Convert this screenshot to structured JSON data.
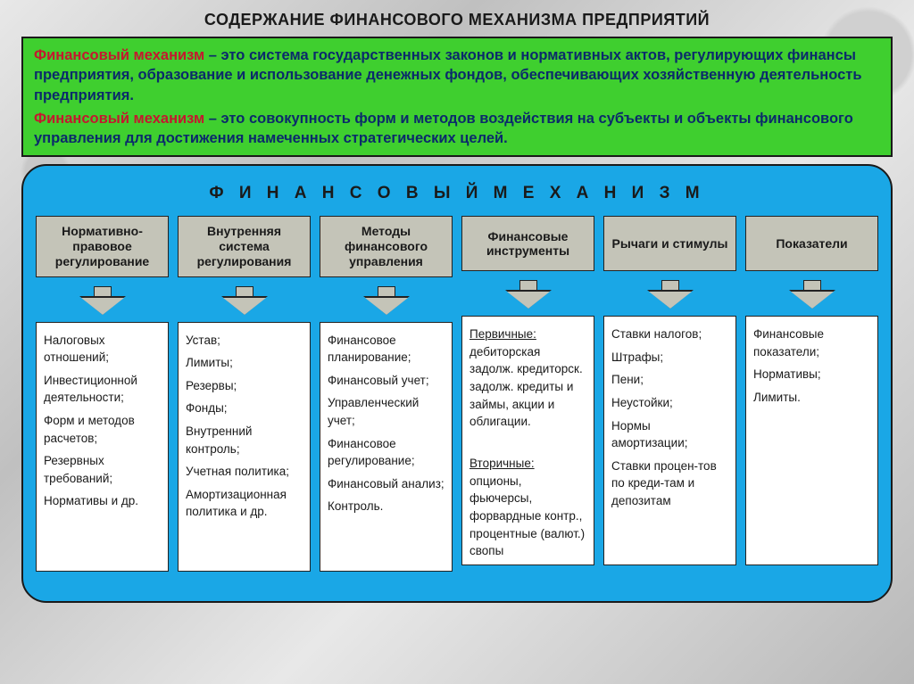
{
  "title": "СОДЕРЖАНИЕ ФИНАНСОВОГО МЕХАНИЗМА ПРЕДПРИЯТИЙ",
  "def_box": {
    "bg_color": "#3fcf2f",
    "term": "Финансовый механизм",
    "p1_rest": " – это система государственных законов и нормативных актов, регулирующих финансы предприятия, образование и использование денежных фондов, обеспечивающих хозяйственную деятельность предприятия.",
    "p2_rest": " – это совокупность форм и методов воздействия на субъекты и объекты финансового управления для достижения намеченных стратегических целей."
  },
  "panel": {
    "bg_color": "#1aa7e6",
    "title": "Ф И Н А Н С О В Ы Й   М Е Х А Н И З М",
    "head_bg": "#c4c4b8",
    "arrow_fill": "#c4c4b8",
    "columns": [
      {
        "head": "Нормативно-правовое регулирование",
        "body_html": "Налоговых отношений;|Инвестиционной деятельности;|Форм и методов расчетов;|Резервных требований;|Нормативы и др."
      },
      {
        "head": "Внутренняя система регулирования",
        "body_html": "Устав;|Лимиты;|Резервы;|Фонды;|Внутренний контроль;|Учетная политика;|Амортизационная политика и др."
      },
      {
        "head": "Методы финансового управления",
        "body_html": "Финансовое планирование;|Финансовый учет;|Управленческий учет;|Финансовое регулирование;|Финансовый анализ;|Контроль."
      },
      {
        "head": "Финансовые инструменты",
        "body_html": "<span class=\"u\">Первичные:</span> дебиторская задолж. кредиторск. задолж. кредиты и займы, акции и облигации.||<span class=\"u\">Вторичные:</span> опционы, фьючерсы, форвардные контр., процентные (валют.) свопы"
      },
      {
        "head": "Рычаги и стимулы",
        "body_html": "Ставки налогов;|Штрафы;|Пени;|Неустойки;|Нормы амортизации;|Ставки процен-тов по креди-там и депозитам"
      },
      {
        "head": "Показатели",
        "body_html": "Финансовые показатели;|Нормативы;|Лимиты."
      }
    ]
  }
}
